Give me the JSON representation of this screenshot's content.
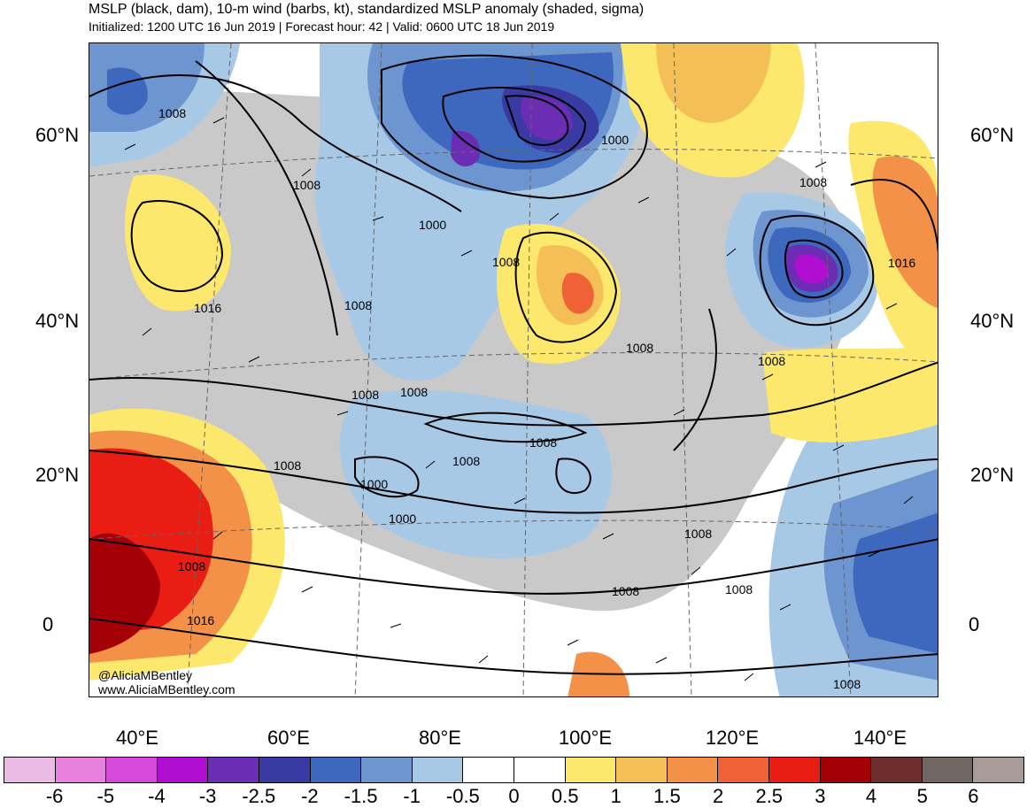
{
  "header": {
    "title": "MSLP (black, dam), 10-m wind (barbs, kt), standardized MSLP anomaly (shaded, sigma)",
    "subtitle": "Initialized: 1200 UTC 16 Jun 2019 | Forecast hour: 42 | Valid: 0600 UTC 18 Jun 2019"
  },
  "map": {
    "lat_labels_left": [
      "60°N",
      "40°N",
      "20°N",
      "0"
    ],
    "lat_labels_right": [
      "60°N",
      "40°N",
      "20°N",
      "0"
    ],
    "lon_labels": [
      "40°E",
      "60°E",
      "80°E",
      "100°E",
      "120°E",
      "140°E"
    ],
    "credit_handle": "@AliciaMBentley",
    "credit_url": "www.AliciaMBentley.com",
    "isobar_labels": [
      "1008",
      "1008",
      "1008",
      "1000",
      "1000",
      "1008",
      "1016",
      "1008",
      "1008",
      "1008",
      "1008",
      "1008",
      "1008",
      "1016",
      "1008",
      "1000",
      "1000",
      "1008",
      "1008",
      "1016",
      "1008",
      "1008",
      "1008",
      "1008"
    ],
    "anomaly_features": [
      {
        "kind": "low",
        "sigma": -3,
        "color": "#b00ed0"
      },
      {
        "kind": "low",
        "sigma": -2.5,
        "color": "#6a2db3"
      },
      {
        "kind": "high",
        "sigma": 3,
        "color": "#a40008"
      },
      {
        "kind": "high",
        "sigma": 2,
        "color": "#f39148"
      }
    ]
  },
  "colorbar": {
    "ticks": [
      "-6",
      "-5",
      "-4",
      "-3",
      "-2.5",
      "-2",
      "-1.5",
      "-1",
      "-0.5",
      "0",
      "0.5",
      "1",
      "1.5",
      "2",
      "2.5",
      "3",
      "4",
      "5",
      "6"
    ],
    "colors": [
      "#ebbbe6",
      "#e880e0",
      "#d549db",
      "#b00ed0",
      "#6a2db3",
      "#3a3aa3",
      "#3e68bd",
      "#6d95cf",
      "#a8c9e6",
      "#ffffff",
      "#ffffff",
      "#fde86e",
      "#f3bf56",
      "#f39148",
      "#ef6235",
      "#e91d13",
      "#a40008",
      "#6e2e2e",
      "#706663",
      "#a89c9a"
    ]
  }
}
